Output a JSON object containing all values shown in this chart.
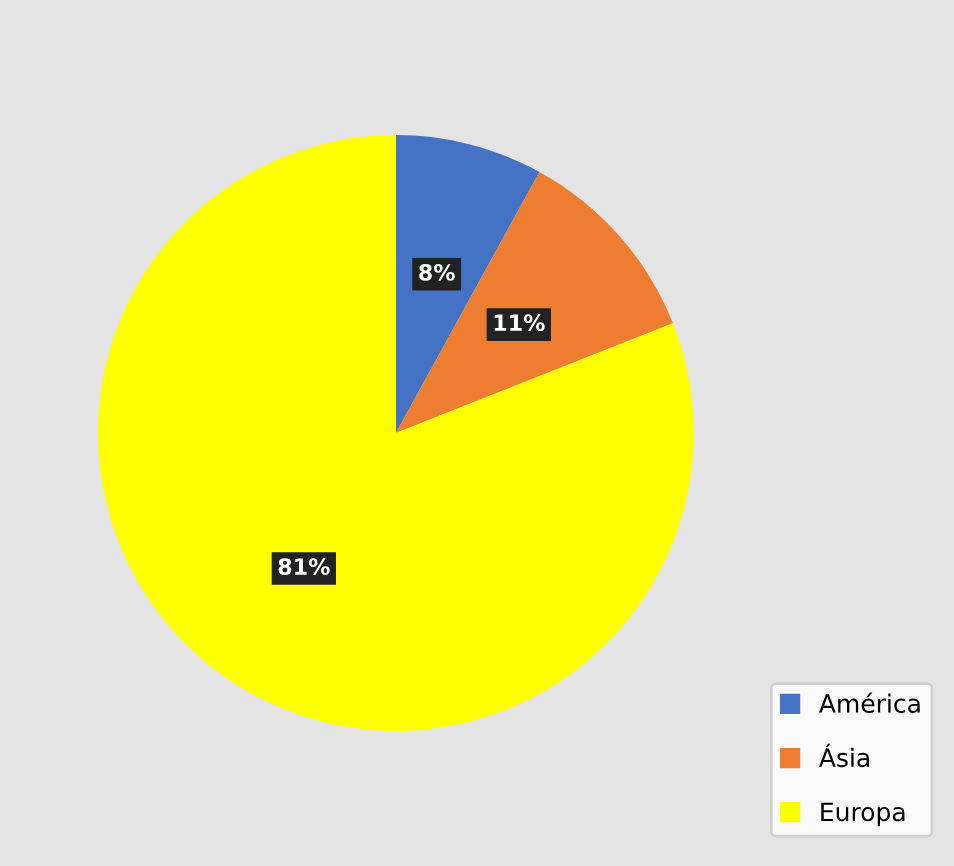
{
  "chart_data": {
    "type": "pie",
    "categories": [
      "América",
      "Ásia",
      "Europa"
    ],
    "values": [
      8,
      11,
      81
    ],
    "colors": [
      "#4472c4",
      "#ed7d31",
      "#ffff00"
    ],
    "value_labels": [
      "8%",
      "11%",
      "81%"
    ],
    "legend": "bottom right"
  }
}
